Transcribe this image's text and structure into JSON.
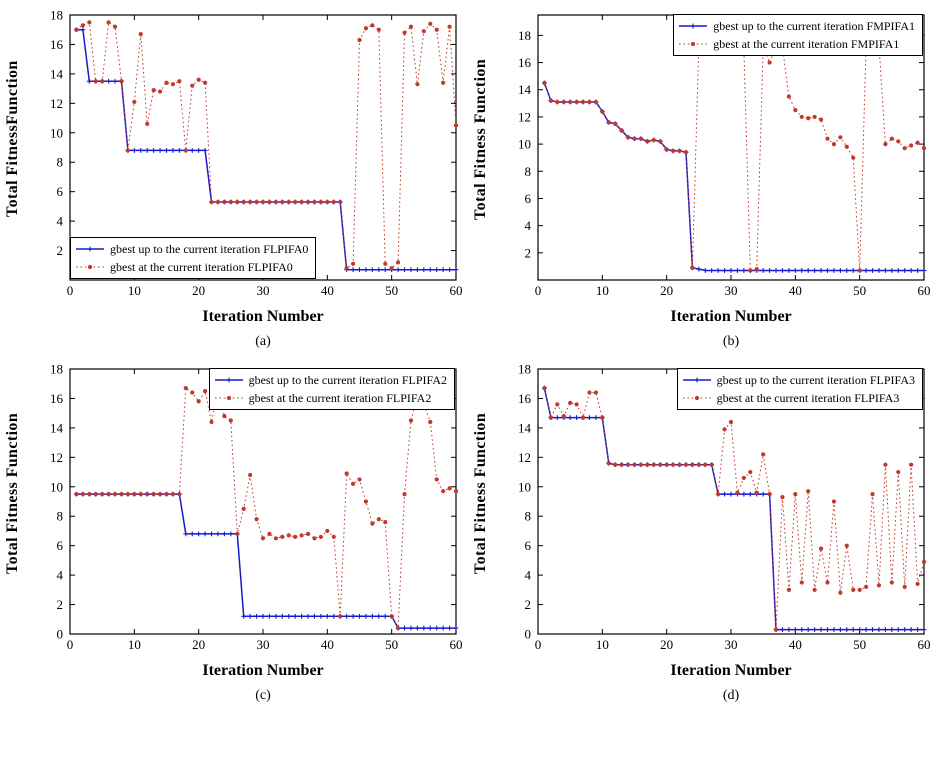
{
  "style": {
    "background": "#ffffff",
    "axis_color": "#000000",
    "gbest_up_color": "#1a1acc",
    "gbest_at_color": "#c0392b"
  },
  "chart_data": [
    {
      "type": "line",
      "caption": "(a)",
      "title": "",
      "xlabel": "Iteration Number",
      "ylabel": "Total FitnessFunction",
      "xlim": [
        0,
        60
      ],
      "ylim": [
        0,
        18
      ],
      "xticks": [
        0,
        10,
        20,
        30,
        40,
        50,
        60
      ],
      "yticks": [
        2,
        4,
        6,
        8,
        10,
        12,
        14,
        16,
        18
      ],
      "x_start": 1,
      "x_step": 1,
      "grid": false,
      "legend_position": "bottom-left",
      "series": [
        {
          "name": "gbest up to the current iteration FLPIFA0",
          "color": "#1a1acc",
          "line": "solid",
          "marker": "plus",
          "values": [
            17,
            17,
            13.5,
            13.5,
            13.5,
            13.5,
            13.5,
            13.5,
            8.8,
            8.8,
            8.8,
            8.8,
            8.8,
            8.8,
            8.8,
            8.8,
            8.8,
            8.8,
            8.8,
            8.8,
            8.8,
            5.3,
            5.3,
            5.3,
            5.3,
            5.3,
            5.3,
            5.3,
            5.3,
            5.3,
            5.3,
            5.3,
            5.3,
            5.3,
            5.3,
            5.3,
            5.3,
            5.3,
            5.3,
            5.3,
            5.3,
            5.3,
            0.7,
            0.7,
            0.7,
            0.7,
            0.7,
            0.7,
            0.7,
            0.7,
            0.7,
            0.7,
            0.7,
            0.7,
            0.7,
            0.7,
            0.7,
            0.7,
            0.7,
            0.7
          ]
        },
        {
          "name": "gbest at the current iteration FLPIFA0",
          "color": "#c0392b",
          "line": "dotted",
          "marker": "dot",
          "values": [
            17,
            17.3,
            17.5,
            13.5,
            13.5,
            17.5,
            17.2,
            13.5,
            8.8,
            12.1,
            16.7,
            10.6,
            12.9,
            12.8,
            13.4,
            13.3,
            13.5,
            8.8,
            13.2,
            13.6,
            13.4,
            5.3,
            5.3,
            5.3,
            5.3,
            5.3,
            5.3,
            5.3,
            5.3,
            5.3,
            5.3,
            5.3,
            5.3,
            5.3,
            5.3,
            5.3,
            5.3,
            5.3,
            5.3,
            5.3,
            5.3,
            5.3,
            0.8,
            1.1,
            16.3,
            17.1,
            17.3,
            17,
            1.1,
            0.8,
            1.2,
            16.8,
            17.2,
            13.3,
            16.9,
            17.4,
            17,
            13.4,
            17.2,
            10.5
          ]
        }
      ]
    },
    {
      "type": "line",
      "caption": "(b)",
      "title": "",
      "xlabel": "Iteration Number",
      "ylabel": "Total Fitness Function",
      "xlim": [
        0,
        60
      ],
      "ylim": [
        0,
        19.5
      ],
      "xticks": [
        0,
        10,
        20,
        30,
        40,
        50,
        60
      ],
      "yticks": [
        2,
        4,
        6,
        8,
        10,
        12,
        14,
        16,
        18
      ],
      "x_start": 1,
      "x_step": 1,
      "grid": false,
      "legend_position": "top-right",
      "series": [
        {
          "name": "gbest up to the current iteration FMPIFA1",
          "color": "#1a1acc",
          "line": "solid",
          "marker": "plus",
          "values": [
            14.5,
            13.2,
            13.1,
            13.1,
            13.1,
            13.1,
            13.1,
            13.1,
            13.1,
            12.4,
            11.6,
            11.5,
            11,
            10.5,
            10.4,
            10.4,
            10.2,
            10.3,
            10.2,
            9.6,
            9.5,
            9.5,
            9.4,
            0.9,
            0.8,
            0.7,
            0.7,
            0.7,
            0.7,
            0.7,
            0.7,
            0.7,
            0.7,
            0.7,
            0.7,
            0.7,
            0.7,
            0.7,
            0.7,
            0.7,
            0.7,
            0.7,
            0.7,
            0.7,
            0.7,
            0.7,
            0.7,
            0.7,
            0.7,
            0.7,
            0.7,
            0.7,
            0.7,
            0.7,
            0.7,
            0.7,
            0.7,
            0.7,
            0.7,
            0.7
          ]
        },
        {
          "name": "gbest at the current iteration FMPIFA1",
          "color": "#c0392b",
          "line": "dotted",
          "marker": "dot",
          "values": [
            14.5,
            13.2,
            13.1,
            13.1,
            13.1,
            13.1,
            13.1,
            13.1,
            13.1,
            12.4,
            11.6,
            11.5,
            11,
            10.5,
            10.4,
            10.4,
            10.2,
            10.3,
            10.2,
            9.6,
            9.5,
            9.5,
            9.4,
            0.9,
            17.2,
            16.9,
            17,
            17.1,
            16.9,
            17.1,
            17,
            16.9,
            0.7,
            0.8,
            17.2,
            16,
            17.2,
            17.1,
            13.5,
            12.5,
            12,
            11.9,
            12,
            11.8,
            10.4,
            10,
            10.5,
            9.8,
            9,
            0.7,
            17.3,
            17,
            17.3,
            10,
            10.4,
            10.2,
            9.7,
            9.9,
            10.1,
            9.7
          ]
        }
      ]
    },
    {
      "type": "line",
      "caption": "(c)",
      "title": "",
      "xlabel": "Iteration Number",
      "ylabel": "Total Fitness Function",
      "xlim": [
        0,
        60
      ],
      "ylim": [
        0,
        18
      ],
      "xticks": [
        0,
        10,
        20,
        30,
        40,
        50,
        60
      ],
      "yticks": [
        0,
        2,
        4,
        6,
        8,
        10,
        12,
        14,
        16,
        18
      ],
      "x_start": 1,
      "x_step": 1,
      "grid": false,
      "legend_position": "top-right",
      "series": [
        {
          "name": "gbest up to the current iteration FLPIFA2",
          "color": "#1a1acc",
          "line": "solid",
          "marker": "plus",
          "values": [
            9.5,
            9.5,
            9.5,
            9.5,
            9.5,
            9.5,
            9.5,
            9.5,
            9.5,
            9.5,
            9.5,
            9.5,
            9.5,
            9.5,
            9.5,
            9.5,
            9.5,
            6.8,
            6.8,
            6.8,
            6.8,
            6.8,
            6.8,
            6.8,
            6.8,
            6.8,
            1.2,
            1.2,
            1.2,
            1.2,
            1.2,
            1.2,
            1.2,
            1.2,
            1.2,
            1.2,
            1.2,
            1.2,
            1.2,
            1.2,
            1.2,
            1.2,
            1.2,
            1.2,
            1.2,
            1.2,
            1.2,
            1.2,
            1.2,
            1.2,
            0.4,
            0.4,
            0.4,
            0.4,
            0.4,
            0.4,
            0.4,
            0.4,
            0.4,
            0.4
          ]
        },
        {
          "name": "gbest at the current iteration FLPIFA2",
          "color": "#c0392b",
          "line": "dotted",
          "marker": "dot",
          "values": [
            9.5,
            9.5,
            9.5,
            9.5,
            9.5,
            9.5,
            9.5,
            9.5,
            9.5,
            9.5,
            9.5,
            9.5,
            9.5,
            9.5,
            9.5,
            9.5,
            9.5,
            16.7,
            16.4,
            15.8,
            16.5,
            14.4,
            16.5,
            14.8,
            14.5,
            6.8,
            8.5,
            10.8,
            7.8,
            6.5,
            6.8,
            6.5,
            6.6,
            6.7,
            6.6,
            6.7,
            6.8,
            6.5,
            6.6,
            7,
            6.6,
            1.2,
            10.9,
            10.2,
            10.5,
            9,
            7.5,
            7.8,
            7.6,
            1.2,
            0.4,
            9.5,
            14.5,
            16.3,
            15.6,
            14.4,
            10.5,
            9.7,
            9.9,
            9.7
          ]
        }
      ]
    },
    {
      "type": "line",
      "caption": "(d)",
      "title": "",
      "xlabel": "Iteration Number",
      "ylabel": "Total Fitness Function",
      "xlim": [
        0,
        60
      ],
      "ylim": [
        0,
        18
      ],
      "xticks": [
        0,
        10,
        20,
        30,
        40,
        50,
        60
      ],
      "yticks": [
        0,
        2,
        4,
        6,
        8,
        10,
        12,
        14,
        16,
        18
      ],
      "x_start": 1,
      "x_step": 1,
      "grid": false,
      "legend_position": "top-right",
      "series": [
        {
          "name": "gbest up to the current iteration FLPIFA3",
          "color": "#1a1acc",
          "line": "solid",
          "marker": "plus",
          "values": [
            16.7,
            14.7,
            14.7,
            14.7,
            14.7,
            14.7,
            14.7,
            14.7,
            14.7,
            14.7,
            11.6,
            11.5,
            11.5,
            11.5,
            11.5,
            11.5,
            11.5,
            11.5,
            11.5,
            11.5,
            11.5,
            11.5,
            11.5,
            11.5,
            11.5,
            11.5,
            11.5,
            9.5,
            9.5,
            9.5,
            9.5,
            9.5,
            9.5,
            9.5,
            9.5,
            9.5,
            0.3,
            0.3,
            0.3,
            0.3,
            0.3,
            0.3,
            0.3,
            0.3,
            0.3,
            0.3,
            0.3,
            0.3,
            0.3,
            0.3,
            0.3,
            0.3,
            0.3,
            0.3,
            0.3,
            0.3,
            0.3,
            0.3,
            0.3,
            0.3
          ]
        },
        {
          "name": "gbest at the current iteration FLPIFA3",
          "color": "#c0392b",
          "line": "dotted",
          "marker": "dot",
          "values": [
            16.7,
            14.7,
            15.6,
            14.8,
            15.7,
            15.6,
            14.7,
            16.4,
            16.4,
            14.7,
            11.6,
            11.5,
            11.5,
            11.5,
            11.5,
            11.5,
            11.5,
            11.5,
            11.5,
            11.5,
            11.5,
            11.5,
            11.5,
            11.5,
            11.5,
            11.5,
            11.5,
            9.5,
            13.9,
            14.4,
            9.6,
            10.6,
            11,
            9.6,
            12.2,
            9.5,
            0.3,
            9.3,
            3,
            9.5,
            3.5,
            9.7,
            3,
            5.8,
            3.5,
            9,
            2.8,
            6,
            3,
            3,
            3.2,
            9.5,
            3.3,
            11.5,
            3.5,
            11,
            3.2,
            11.5,
            3.4,
            4.9
          ]
        }
      ]
    }
  ]
}
